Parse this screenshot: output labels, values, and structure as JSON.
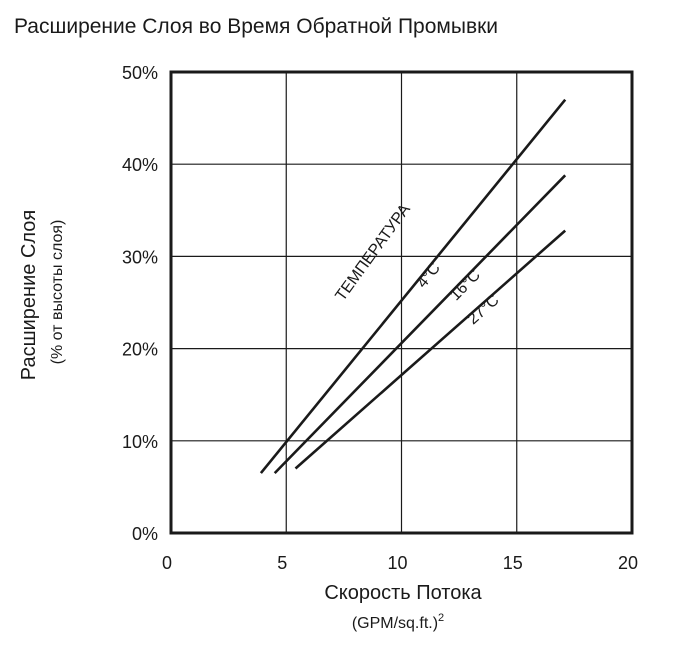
{
  "chart_data": {
    "type": "line",
    "title": "Расширение Слоя во Время Обратной Промывки",
    "xlabel": "Скорость Потока",
    "xlabel_units": "(GPM/sq.ft.)",
    "xlabel_units_sup": "2",
    "ylabel": "Расширение Слоя",
    "ylabel_units": "(% от высоты слоя)",
    "xlim": [
      0,
      20
    ],
    "ylim": [
      0,
      50
    ],
    "x_ticks": [
      0,
      5,
      10,
      15,
      20
    ],
    "y_ticks": [
      0,
      10,
      20,
      30,
      40,
      50
    ],
    "y_tick_labels": [
      "0%",
      "10%",
      "20%",
      "30%",
      "40%",
      "50%"
    ],
    "grid": true,
    "annotation_title": "ТЕМПЕРАТУРА",
    "series": [
      {
        "name": "4°C",
        "x": [
          3.9,
          17.1
        ],
        "y": [
          6.5,
          47.0
        ]
      },
      {
        "name": "16°C",
        "x": [
          4.5,
          17.1
        ],
        "y": [
          6.5,
          38.8
        ]
      },
      {
        "name": "27°C",
        "x": [
          5.4,
          17.1
        ],
        "y": [
          7.0,
          32.8
        ]
      }
    ]
  }
}
